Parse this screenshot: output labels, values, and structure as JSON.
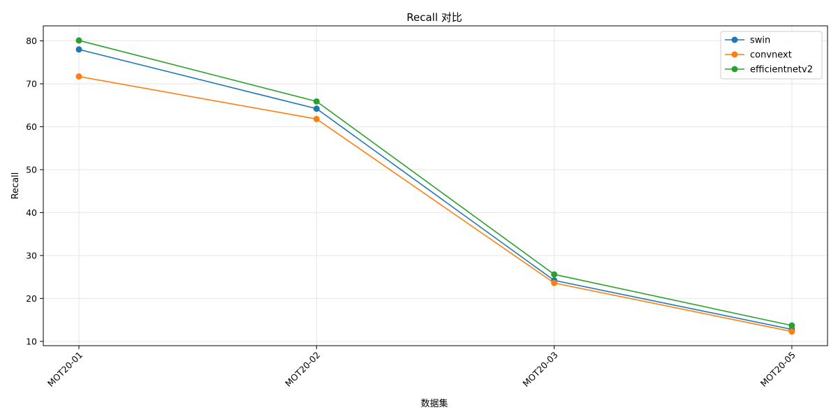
{
  "chart_data": {
    "type": "line",
    "title": "Recall 对比",
    "xlabel": "数据集",
    "ylabel": "Recall",
    "categories": [
      "MOT20-01",
      "MOT20-02",
      "MOT20-03",
      "MOT20-05"
    ],
    "ylim": [
      9,
      83.5
    ],
    "yticks": [
      10,
      20,
      30,
      40,
      50,
      60,
      70,
      80
    ],
    "grid": true,
    "legend_position": "top-right",
    "series": [
      {
        "name": "swin",
        "color": "#1f77b4",
        "values": [
          78.0,
          64.2,
          24.2,
          12.8
        ]
      },
      {
        "name": "convnext",
        "color": "#ff7f0e",
        "values": [
          71.7,
          61.8,
          23.6,
          12.3
        ]
      },
      {
        "name": "efficientnetv2",
        "color": "#2ca02c",
        "values": [
          80.1,
          65.9,
          25.6,
          13.7
        ]
      }
    ]
  }
}
